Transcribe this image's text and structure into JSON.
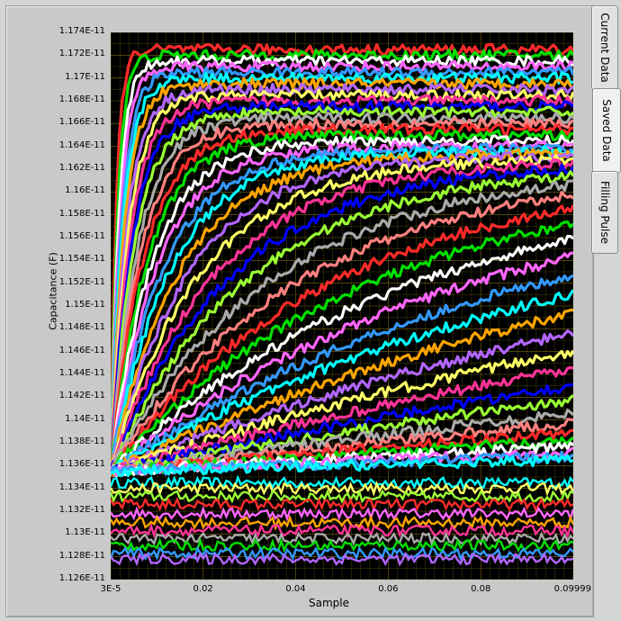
{
  "tabs": [
    {
      "label": "Current Data",
      "active": false
    },
    {
      "label": "Saved Data",
      "active": true
    },
    {
      "label": "Filling Pulse",
      "active": false
    }
  ],
  "chart_data": {
    "type": "line",
    "xlabel": "Sample",
    "ylabel": "Capacitance (F)",
    "xlim": [
      3e-05,
      0.09999
    ],
    "ylim": [
      1.126e-11,
      1.174e-11
    ],
    "x_ticks": [
      "3E-5",
      "0.02",
      "0.04",
      "0.06",
      "0.08",
      "0.09999"
    ],
    "y_ticks": [
      "1.174E-11",
      "1.172E-11",
      "1.17E-11",
      "1.168E-11",
      "1.166E-11",
      "1.164E-11",
      "1.162E-11",
      "1.16E-11",
      "1.158E-11",
      "1.156E-11",
      "1.154E-11",
      "1.152E-11",
      "1.15E-11",
      "1.148E-11",
      "1.146E-11",
      "1.144E-11",
      "1.142E-11",
      "1.14E-11",
      "1.138E-11",
      "1.136E-11",
      "1.134E-11",
      "1.132E-11",
      "1.13E-11",
      "1.128E-11",
      "1.126E-11"
    ],
    "grid": true,
    "start_value": 1.1355e-11,
    "series_colors": [
      "#ff2a2a",
      "#00e000",
      "#ffffff",
      "#ff66ff",
      "#3399ff",
      "#00ffff",
      "#ffa500",
      "#b266ff",
      "#ffff66",
      "#ff3399",
      "#0000ff",
      "#99ff33",
      "#aaaaaa",
      "#ff8080"
    ],
    "series": [
      {
        "final": 1.1725e-11,
        "tau": 0.0012
      },
      {
        "final": 1.172e-11,
        "tau": 0.0015
      },
      {
        "final": 1.1715e-11,
        "tau": 0.0018
      },
      {
        "final": 1.171e-11,
        "tau": 0.0021
      },
      {
        "final": 1.1705e-11,
        "tau": 0.0024
      },
      {
        "final": 1.17e-11,
        "tau": 0.0027
      },
      {
        "final": 1.1695e-11,
        "tau": 0.003
      },
      {
        "final": 1.169e-11,
        "tau": 0.0034
      },
      {
        "final": 1.1685e-11,
        "tau": 0.0038
      },
      {
        "final": 1.168e-11,
        "tau": 0.0042
      },
      {
        "final": 1.1675e-11,
        "tau": 0.0047
      },
      {
        "final": 1.167e-11,
        "tau": 0.0052
      },
      {
        "final": 1.1665e-11,
        "tau": 0.0058
      },
      {
        "final": 1.166e-11,
        "tau": 0.0065
      },
      {
        "final": 1.1655e-11,
        "tau": 0.0072
      },
      {
        "final": 1.165e-11,
        "tau": 0.008
      },
      {
        "final": 1.1645e-11,
        "tau": 0.009
      },
      {
        "final": 1.164e-11,
        "tau": 0.01
      },
      {
        "final": 1.1638e-11,
        "tau": 0.0115
      },
      {
        "final": 1.1636e-11,
        "tau": 0.013
      },
      {
        "final": 1.1634e-11,
        "tau": 0.015
      },
      {
        "final": 1.1632e-11,
        "tau": 0.017
      },
      {
        "final": 1.163e-11,
        "tau": 0.0195
      },
      {
        "final": 1.1628e-11,
        "tau": 0.0225
      },
      {
        "final": 1.1626e-11,
        "tau": 0.026
      },
      {
        "final": 1.1624e-11,
        "tau": 0.03
      },
      {
        "final": 1.1622e-11,
        "tau": 0.035
      },
      {
        "final": 1.162e-11,
        "tau": 0.041
      },
      {
        "final": 1.1618e-11,
        "tau": 0.048
      },
      {
        "final": 1.1616e-11,
        "tau": 0.056
      },
      {
        "final": 1.1614e-11,
        "tau": 0.065
      },
      {
        "final": 1.1612e-11,
        "tau": 0.076
      },
      {
        "final": 1.161e-11,
        "tau": 0.089
      },
      {
        "final": 1.1608e-11,
        "tau": 0.105
      },
      {
        "final": 1.1606e-11,
        "tau": 0.125
      },
      {
        "final": 1.1604e-11,
        "tau": 0.15
      },
      {
        "final": 1.1602e-11,
        "tau": 0.18
      },
      {
        "final": 1.16e-11,
        "tau": 0.22
      },
      {
        "final": 1.1598e-11,
        "tau": 0.27
      },
      {
        "final": 1.1596e-11,
        "tau": 0.33
      },
      {
        "final": 1.1594e-11,
        "tau": 0.41
      },
      {
        "final": 1.1592e-11,
        "tau": 0.51
      },
      {
        "final": 1.159e-11,
        "tau": 0.64
      },
      {
        "final": 1.1588e-11,
        "tau": 0.8
      },
      {
        "final": 1.1586e-11,
        "tau": 1.0
      },
      {
        "final": 1.1584e-11,
        "tau": 1.3
      },
      {
        "final": 1.1582e-11,
        "tau": 1.7
      },
      {
        "final": 1.158e-11,
        "tau": 2.2
      }
    ],
    "flat_series": [
      1.1345e-11,
      1.134e-11,
      1.1333e-11,
      1.1326e-11,
      1.1318e-11,
      1.131e-11,
      1.1303e-11,
      1.1296e-11,
      1.129e-11,
      1.1283e-11,
      1.1278e-11
    ]
  }
}
